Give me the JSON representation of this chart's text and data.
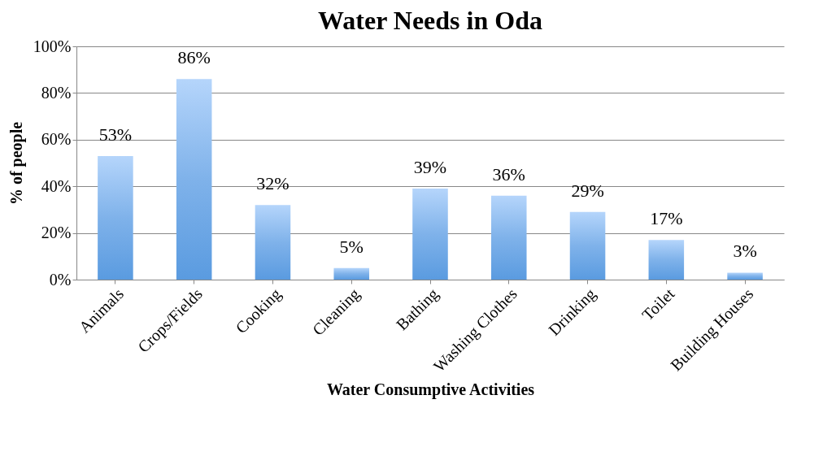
{
  "chart_data": {
    "type": "bar",
    "title": "Water Needs in Oda",
    "xlabel": "Water Consumptive Activities",
    "ylabel": "% of people",
    "categories": [
      "Animals",
      "Crops/Fields",
      "Cooking",
      "Cleaning",
      "Bathing",
      "Washing Clothes",
      "Drinking",
      "Toilet",
      "Building Houses"
    ],
    "values": [
      53,
      86,
      32,
      5,
      39,
      36,
      29,
      17,
      3
    ],
    "value_labels": [
      "53%",
      "86%",
      "32%",
      "5%",
      "39%",
      "36%",
      "29%",
      "17%",
      "3%"
    ],
    "color": "#7fb2ea",
    "ylim": [
      0,
      100
    ],
    "yticks": [
      {
        "value": 0,
        "label": "0%"
      },
      {
        "value": 20,
        "label": "20%"
      },
      {
        "value": 40,
        "label": "40%"
      },
      {
        "value": 60,
        "label": "60%"
      },
      {
        "value": 80,
        "label": "80%"
      },
      {
        "value": 100,
        "label": "100%"
      }
    ],
    "grid": "y"
  }
}
